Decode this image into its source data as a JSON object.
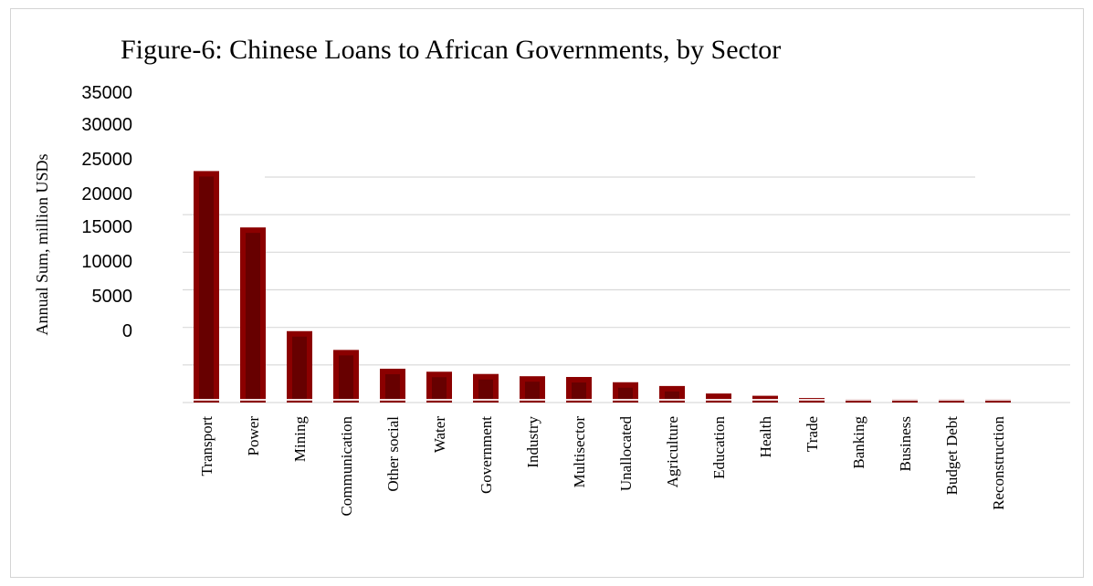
{
  "chart_data": {
    "type": "bar",
    "title": "Figure-6: Chinese Loans to African Governments, by Sector",
    "ylabel": "Annual Sum, million USDs",
    "xlabel": "",
    "y_ticks": [
      "35000",
      "30000",
      "25000",
      "20000",
      "15000",
      "10000",
      "5000",
      "0"
    ],
    "ylim": [
      0,
      35000
    ],
    "grid": true,
    "legend": "none",
    "categories": [
      "Transport",
      "Power",
      "Mining",
      "Communication",
      "Other social",
      "Water",
      "Government",
      "Industry",
      "Multisector",
      "Unallocated",
      "Agriculture",
      "Education",
      "Health",
      "Trade",
      "Banking",
      "Business",
      "Budget Debt",
      "Reconstruction"
    ],
    "values": [
      30800,
      23300,
      9500,
      7000,
      4500,
      4100,
      3800,
      3500,
      3400,
      2700,
      2200,
      1200,
      900,
      600,
      450,
      450,
      400,
      350
    ],
    "bar_color": "#8b0000",
    "bar_shadow_color": "#4a0000"
  }
}
